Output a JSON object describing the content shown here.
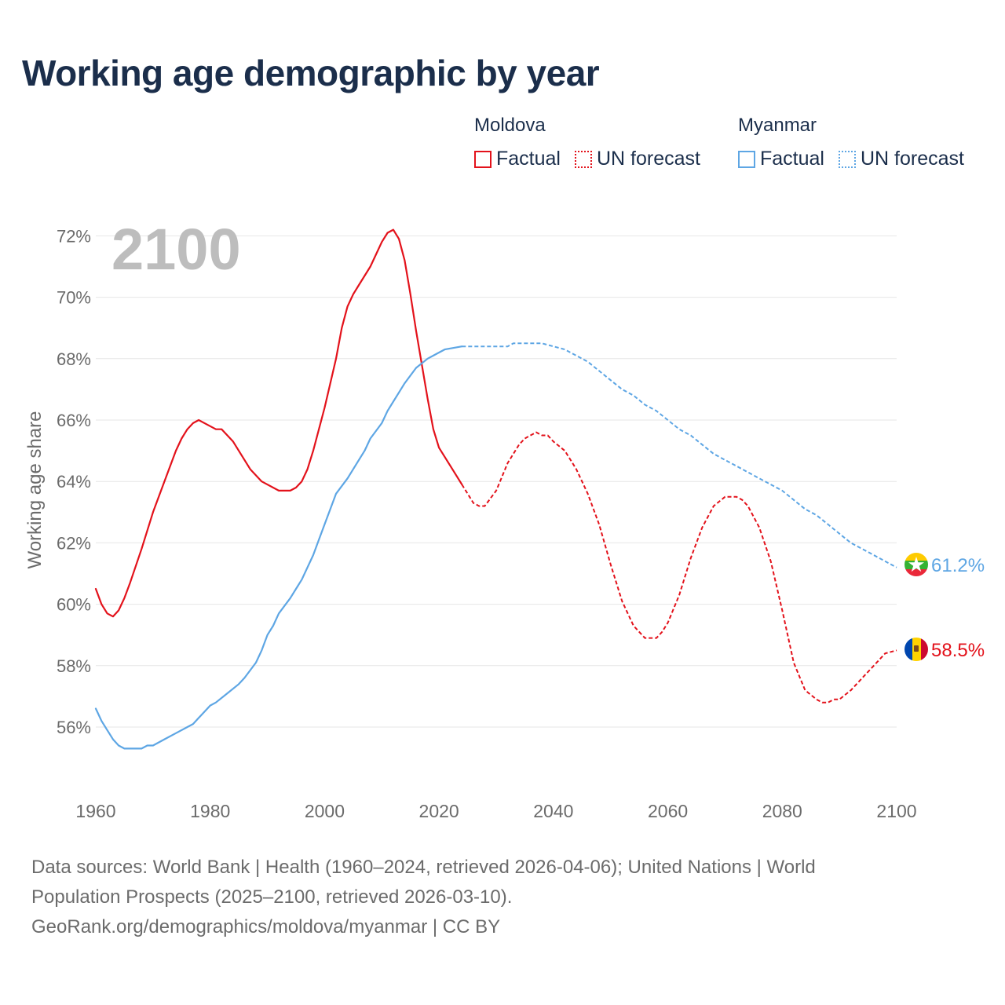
{
  "title": "Working age demographic by year",
  "legend": {
    "groups": [
      {
        "country": "Moldova",
        "color": "#e3121b",
        "factual_label": "Factual",
        "forecast_label": "UN forecast"
      },
      {
        "country": "Myanmar",
        "color": "#5ea6e4",
        "factual_label": "Factual",
        "forecast_label": "UN forecast"
      }
    ]
  },
  "chart_data": {
    "type": "line",
    "title": "Working age demographic by year",
    "xlabel": "",
    "ylabel": "Working age share",
    "xlim": [
      1960,
      2100
    ],
    "ylim": [
      54,
      73
    ],
    "x_ticks": [
      "1960",
      "1980",
      "2000",
      "2020",
      "2040",
      "2060",
      "2080",
      "2100"
    ],
    "y_ticks": [
      "56%",
      "58%",
      "60%",
      "62%",
      "64%",
      "66%",
      "68%",
      "70%",
      "72%"
    ],
    "year_overlay": "2100",
    "series": [
      {
        "name": "Moldova",
        "color": "#e3121b",
        "end_label": "58.5%",
        "factual_until": 2024,
        "x": [
          1960,
          1961,
          1962,
          1963,
          1964,
          1965,
          1966,
          1968,
          1970,
          1972,
          1974,
          1975,
          1976,
          1977,
          1978,
          1980,
          1981,
          1982,
          1984,
          1986,
          1987,
          1989,
          1992,
          1994,
          1995,
          1996,
          1997,
          1998,
          2000,
          2002,
          2003,
          2004,
          2005,
          2006,
          2008,
          2009,
          2010,
          2011,
          2012,
          2013,
          2014,
          2015,
          2016,
          2017,
          2018,
          2019,
          2020,
          2022,
          2024,
          2025,
          2026,
          2027,
          2028,
          2030,
          2032,
          2034,
          2035,
          2036,
          2037,
          2038,
          2039,
          2040,
          2042,
          2044,
          2046,
          2048,
          2050,
          2052,
          2054,
          2055,
          2056,
          2057,
          2058,
          2059,
          2060,
          2062,
          2064,
          2066,
          2068,
          2070,
          2071,
          2072,
          2073,
          2074,
          2076,
          2078,
          2080,
          2082,
          2084,
          2086,
          2087,
          2088,
          2089,
          2090,
          2092,
          2094,
          2096,
          2098,
          2100
        ],
        "values": [
          60.5,
          60.0,
          59.7,
          59.6,
          59.8,
          60.2,
          60.7,
          61.8,
          63.0,
          64.0,
          65.0,
          65.4,
          65.7,
          65.9,
          66.0,
          65.8,
          65.7,
          65.7,
          65.3,
          64.7,
          64.4,
          64.0,
          63.7,
          63.7,
          63.8,
          64.0,
          64.4,
          65.0,
          66.4,
          68.0,
          69.0,
          69.7,
          70.1,
          70.4,
          71.0,
          71.4,
          71.8,
          72.1,
          72.2,
          71.9,
          71.2,
          70.1,
          68.9,
          67.8,
          66.7,
          65.7,
          65.1,
          64.5,
          63.9,
          63.6,
          63.3,
          63.2,
          63.2,
          63.7,
          64.6,
          65.2,
          65.4,
          65.5,
          65.6,
          65.5,
          65.5,
          65.3,
          65.0,
          64.4,
          63.6,
          62.6,
          61.3,
          60.1,
          59.3,
          59.1,
          58.9,
          58.9,
          58.9,
          59.1,
          59.4,
          60.3,
          61.5,
          62.5,
          63.2,
          63.5,
          63.5,
          63.5,
          63.4,
          63.2,
          62.5,
          61.4,
          59.8,
          58.1,
          57.2,
          56.9,
          56.8,
          56.8,
          56.9,
          56.9,
          57.2,
          57.6,
          58.0,
          58.4,
          58.5
        ]
      },
      {
        "name": "Myanmar",
        "color": "#5ea6e4",
        "end_label": "61.2%",
        "factual_until": 2024,
        "x": [
          1960,
          1961,
          1962,
          1963,
          1964,
          1965,
          1966,
          1968,
          1969,
          1970,
          1972,
          1974,
          1976,
          1977,
          1978,
          1980,
          1981,
          1983,
          1985,
          1986,
          1988,
          1989,
          1990,
          1991,
          1992,
          1994,
          1995,
          1996,
          1998,
          1999,
          2000,
          2001,
          2002,
          2004,
          2006,
          2007,
          2008,
          2010,
          2011,
          2012,
          2014,
          2016,
          2018,
          2019,
          2020,
          2021,
          2024,
          2028,
          2032,
          2033,
          2035,
          2038,
          2040,
          2042,
          2044,
          2046,
          2048,
          2050,
          2052,
          2054,
          2056,
          2058,
          2060,
          2062,
          2064,
          2066,
          2068,
          2070,
          2072,
          2074,
          2076,
          2078,
          2080,
          2082,
          2084,
          2086,
          2088,
          2090,
          2092,
          2094,
          2096,
          2098,
          2100
        ],
        "values": [
          56.6,
          56.2,
          55.9,
          55.6,
          55.4,
          55.3,
          55.3,
          55.3,
          55.4,
          55.4,
          55.6,
          55.8,
          56.0,
          56.1,
          56.3,
          56.7,
          56.8,
          57.1,
          57.4,
          57.6,
          58.1,
          58.5,
          59.0,
          59.3,
          59.7,
          60.2,
          60.5,
          60.8,
          61.6,
          62.1,
          62.6,
          63.1,
          63.6,
          64.1,
          64.7,
          65.0,
          65.4,
          65.9,
          66.3,
          66.6,
          67.2,
          67.7,
          68.0,
          68.1,
          68.2,
          68.3,
          68.4,
          68.4,
          68.4,
          68.5,
          68.5,
          68.5,
          68.4,
          68.3,
          68.1,
          67.9,
          67.6,
          67.3,
          67.0,
          66.8,
          66.5,
          66.3,
          66.0,
          65.7,
          65.5,
          65.2,
          64.9,
          64.7,
          64.5,
          64.3,
          64.1,
          63.9,
          63.7,
          63.4,
          63.1,
          62.9,
          62.6,
          62.3,
          62.0,
          61.8,
          61.6,
          61.4,
          61.2
        ]
      }
    ]
  },
  "source_text": {
    "line1": "Data sources: World Bank | Health (1960–2024, retrieved 2026-04-06); United Nations | World",
    "line2": "Population Prospects (2025–2100, retrieved 2026-03-10).",
    "line3": "GeoRank.org/demographics/moldova/myanmar | CC BY"
  }
}
